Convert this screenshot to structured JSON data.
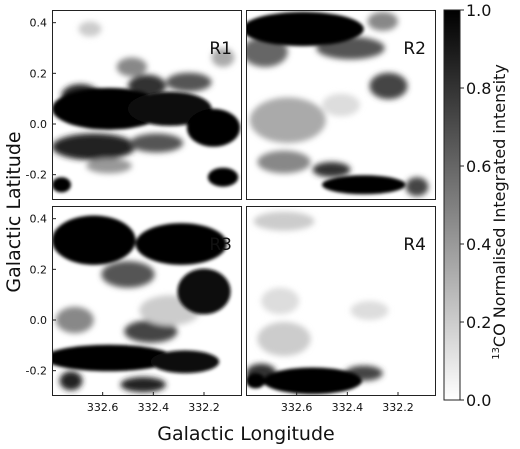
{
  "figure": {
    "xlabel": "Galactic Longitude",
    "ylabel": "Galactic Latitude",
    "colorbar_label_prefix": "13",
    "colorbar_label_main": "CO Normalised Integrated intensity"
  },
  "chart_data": {
    "type": "heatmap",
    "colormap": "gray_reversed",
    "colorbar": {
      "range": [
        0.0,
        1.0
      ],
      "ticks": [
        "1.0",
        "0.8",
        "0.6",
        "0.4",
        "0.2",
        "0.0"
      ]
    },
    "x_ticks": [
      "332.6",
      "332.4",
      "332.2"
    ],
    "y_ticks": [
      "0.4",
      "0.2",
      "0.0",
      "-0.2"
    ],
    "xlim": [
      332.8,
      332.05
    ],
    "ylim": [
      -0.3,
      0.45
    ],
    "panels": [
      {
        "label": "R1",
        "position": "top-left"
      },
      {
        "label": "R2",
        "position": "top-right"
      },
      {
        "label": "R3",
        "position": "bottom-left"
      },
      {
        "label": "R4",
        "position": "bottom-right"
      }
    ]
  }
}
